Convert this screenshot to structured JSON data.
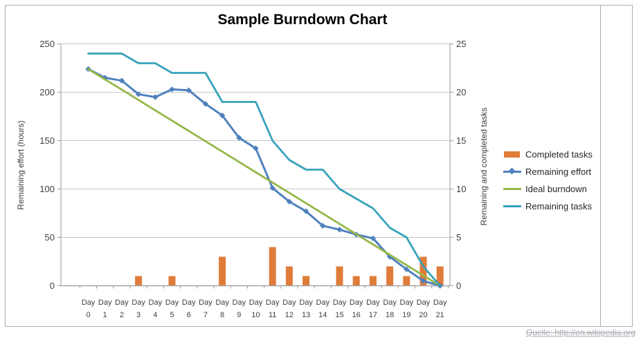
{
  "page": {
    "attribution": "Quelle: http://en.wikipedia.org"
  },
  "chart_data": {
    "type": "combo",
    "title": "Sample Burndown Chart",
    "categories": [
      "Day 0",
      "Day 1",
      "Day 2",
      "Day 3",
      "Day 4",
      "Day 5",
      "Day 6",
      "Day 7",
      "Day 8",
      "Day 9",
      "Day 10",
      "Day 11",
      "Day 12",
      "Day 13",
      "Day 14",
      "Day 15",
      "Day 16",
      "Day 17",
      "Day 18",
      "Day 19",
      "Day 20",
      "Day 21"
    ],
    "left_axis": {
      "title": "Remaining effort (hours)",
      "min": 0,
      "max": 250,
      "step": 50
    },
    "right_axis": {
      "title": "Remaining and completed tasks",
      "min": 0,
      "max": 25,
      "step": 5
    },
    "grid": true,
    "legend_position": "right",
    "colors": {
      "grid": "#C7C7C7",
      "axis": "#A6A6A6",
      "tick_text": "#3F3F3F",
      "attribution_text": "#A9A9B3"
    },
    "series": [
      {
        "name": "Completed tasks",
        "type": "bar",
        "axis": "right",
        "color": "#E07C39",
        "values": [
          0,
          0,
          0,
          1,
          0,
          1,
          0,
          0,
          3,
          0,
          0,
          4,
          2,
          1,
          0,
          2,
          1,
          1,
          2,
          1,
          3,
          2
        ]
      },
      {
        "name": "Remaining effort",
        "type": "line",
        "marker": "diamond",
        "axis": "left",
        "color": "#4F81BD",
        "values": [
          224,
          215,
          212,
          198,
          195,
          203,
          202,
          188,
          176,
          153,
          142,
          101,
          87,
          77,
          62,
          58,
          53,
          49,
          30,
          17,
          5,
          0
        ]
      },
      {
        "name": "Ideal burndown",
        "type": "line",
        "axis": "left",
        "color": "#95B748",
        "values": [
          224,
          213.3,
          202.7,
          192,
          181.3,
          170.7,
          160,
          149.3,
          138.7,
          128,
          117.3,
          106.7,
          96,
          85.3,
          74.7,
          64,
          53.3,
          42.7,
          32,
          21.3,
          10.7,
          0
        ]
      },
      {
        "name": "Remaining tasks",
        "type": "line",
        "axis": "right",
        "color": "#37A2BB",
        "values": [
          24,
          24,
          24,
          23,
          23,
          22,
          22,
          22,
          19,
          19,
          19,
          15,
          13,
          12,
          12,
          10,
          9,
          8,
          6,
          5,
          2,
          0
        ]
      }
    ]
  }
}
